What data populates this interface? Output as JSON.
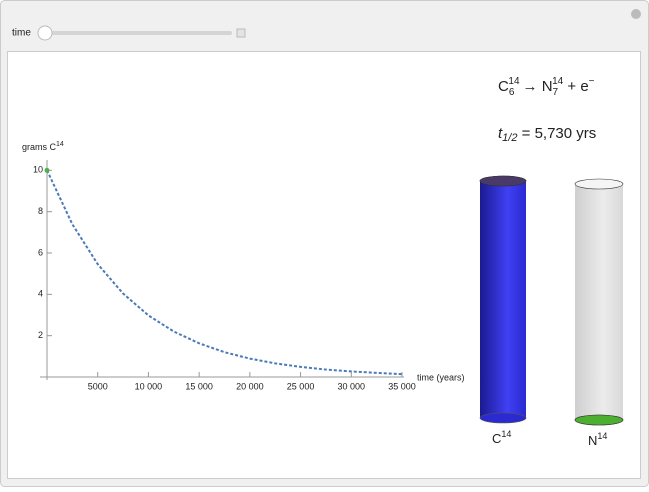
{
  "controls": {
    "label": "time"
  },
  "chart_data": {
    "type": "line",
    "y_label": {
      "text": "grams C",
      "sup": "14"
    },
    "x_label": "time (years)",
    "x": [
      0,
      2500,
      5000,
      7500,
      10000,
      12500,
      15000,
      17500,
      20000,
      22500,
      25000,
      27500,
      30000,
      32500,
      35000
    ],
    "series": [
      {
        "color": "#4a7ab8",
        "values": [
          10,
          7.39,
          5.46,
          4.04,
          2.98,
          2.2,
          1.63,
          1.2,
          0.89,
          0.66,
          0.49,
          0.36,
          0.27,
          0.2,
          0.14
        ]
      }
    ],
    "current": {
      "x": 0,
      "y": 10,
      "color": "#4caf50"
    },
    "xlim": [
      0,
      35000
    ],
    "ylim": [
      0,
      10.5
    ],
    "xticks": [
      5000,
      {
        "value": 10000,
        "label": "10 000"
      },
      {
        "value": 15000,
        "label": "15 000"
      },
      {
        "value": 20000,
        "label": "20 000"
      },
      {
        "value": 25000,
        "label": "25 000"
      },
      {
        "value": 30000,
        "label": "30 000"
      },
      {
        "value": 35000,
        "label": "35 000"
      }
    ],
    "yticks": [
      2,
      4,
      6,
      8,
      10
    ]
  },
  "equation": {
    "c": "C",
    "c_sub": "6",
    "c_sup": "14",
    "arrow": "→ N",
    "n_sub": "7",
    "n_sup": "14",
    "plus": " + e",
    "e_sup": "−"
  },
  "half_life": {
    "t": "t",
    "t_sub": "1/2",
    "rest": " = 5,730 yrs"
  },
  "cylinders": [
    {
      "label": "C",
      "sup": "14",
      "amount": 10,
      "color": "#3535f0"
    },
    {
      "label": "N",
      "sup": "14",
      "amount": 0,
      "color": "#4caf30"
    }
  ]
}
